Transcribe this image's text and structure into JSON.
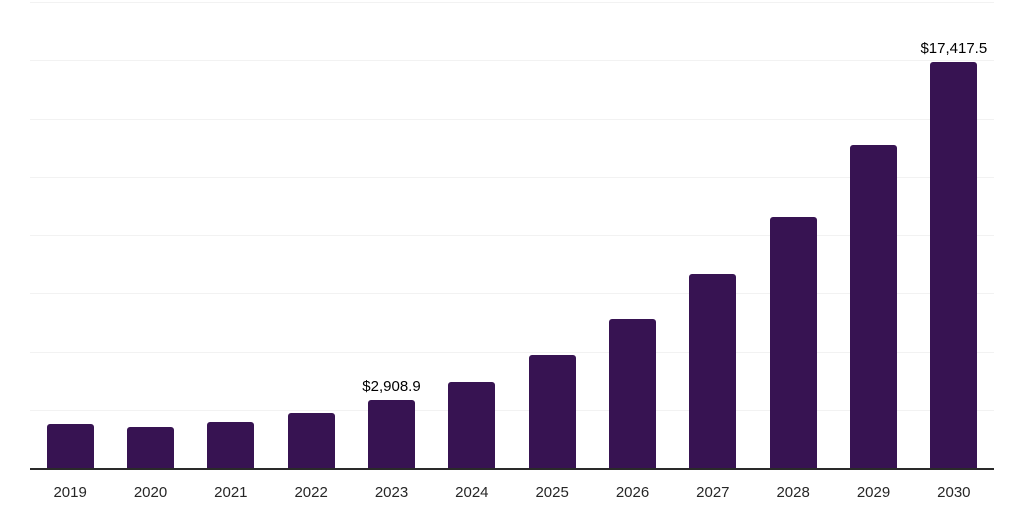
{
  "chart_data": {
    "type": "bar",
    "title": "",
    "categories": [
      "2019",
      "2020",
      "2021",
      "2022",
      "2023",
      "2024",
      "2025",
      "2026",
      "2027",
      "2028",
      "2029",
      "2030"
    ],
    "values": [
      1890,
      1780,
      1990,
      2340,
      2908.9,
      3700,
      4860,
      6390,
      8320,
      10790,
      13860,
      17417.5
    ],
    "annotations": [
      {
        "category": "2023",
        "text": "$2,908.9"
      },
      {
        "category": "2030",
        "text": "$17,417.5"
      }
    ],
    "xlabel": "",
    "ylabel": "",
    "ylim": [
      0,
      20000
    ],
    "gridline_step": 2500,
    "grid": true,
    "legend": false,
    "colors": {
      "bar": "#371352",
      "axis": "#2a2a2a",
      "gridline": "#f2f2f2",
      "value_label": "#000000",
      "tick_label": "#262626",
      "background": "#ffffff"
    }
  }
}
